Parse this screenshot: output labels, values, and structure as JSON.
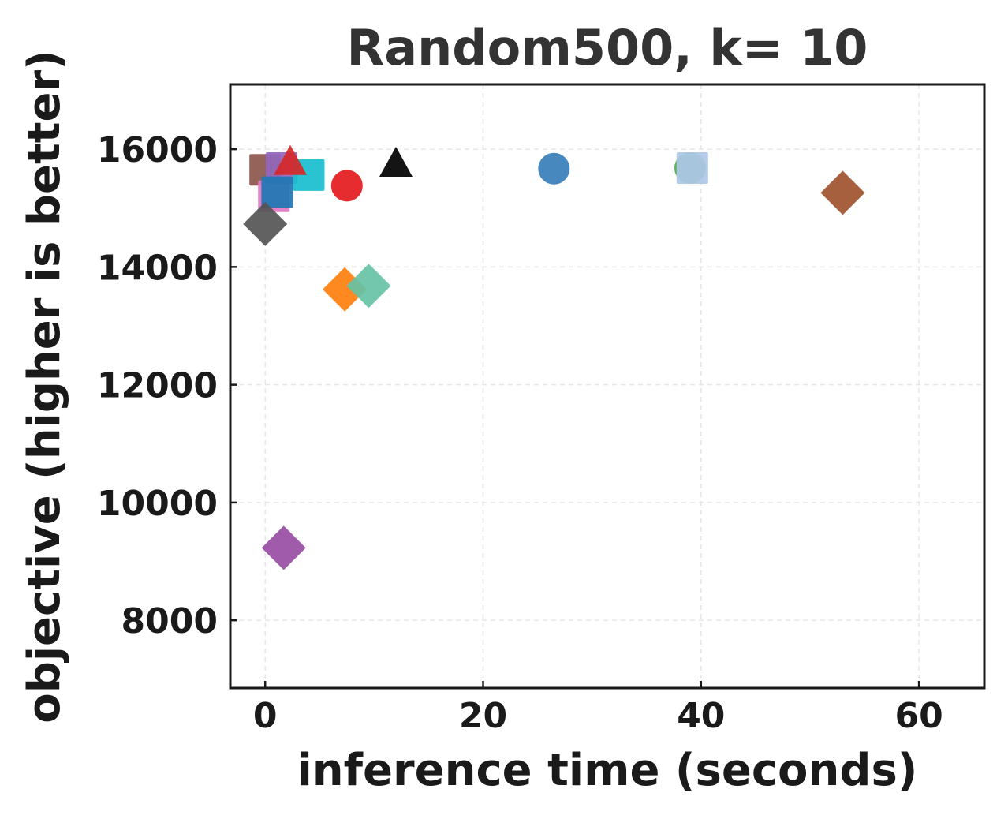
{
  "chart_data": {
    "type": "scatter",
    "title": "Random500, k= 10",
    "xlabel": "inference time (seconds)",
    "ylabel": "objective (higher is better)",
    "xlim": [
      -3.2,
      66
    ],
    "ylim": [
      6850,
      17100
    ],
    "xticks": [
      0,
      20,
      40,
      60
    ],
    "yticks": [
      8000,
      10000,
      12000,
      14000,
      16000
    ],
    "grid": true,
    "points": [
      {
        "x": 0.0,
        "y": 15650,
        "marker": "square",
        "color": "#8c564b"
      },
      {
        "x": 0.8,
        "y": 15200,
        "marker": "square",
        "color": "#e377c2"
      },
      {
        "x": 1.5,
        "y": 15680,
        "marker": "square",
        "color": "#9467bd"
      },
      {
        "x": 4.0,
        "y": 15560,
        "marker": "square",
        "color": "#17becf"
      },
      {
        "x": 1.1,
        "y": 15270,
        "marker": "square",
        "color": "#1f77b4"
      },
      {
        "x": 2.3,
        "y": 15750,
        "marker": "triangle",
        "color": "#d62728"
      },
      {
        "x": 12.0,
        "y": 15720,
        "marker": "triangle",
        "color": "#000000"
      },
      {
        "x": 7.5,
        "y": 15380,
        "marker": "circle",
        "color": "#e41a1c"
      },
      {
        "x": 26.5,
        "y": 15670,
        "marker": "circle",
        "color": "#377eb8"
      },
      {
        "x": 39.0,
        "y": 15680,
        "marker": "circle",
        "color": "#4daf4a"
      },
      {
        "x": 39.2,
        "y": 15680,
        "marker": "square",
        "color": "#aec7e8"
      },
      {
        "x": 53.0,
        "y": 15260,
        "marker": "diamond",
        "color": "#a0522d"
      },
      {
        "x": 0.0,
        "y": 14730,
        "marker": "diamond",
        "color": "#555555"
      },
      {
        "x": 7.3,
        "y": 13620,
        "marker": "diamond",
        "color": "#ff7f0e"
      },
      {
        "x": 9.5,
        "y": 13680,
        "marker": "diamond",
        "color": "#66c2a5"
      },
      {
        "x": 1.7,
        "y": 9230,
        "marker": "diamond",
        "color": "#984ea3"
      }
    ]
  }
}
